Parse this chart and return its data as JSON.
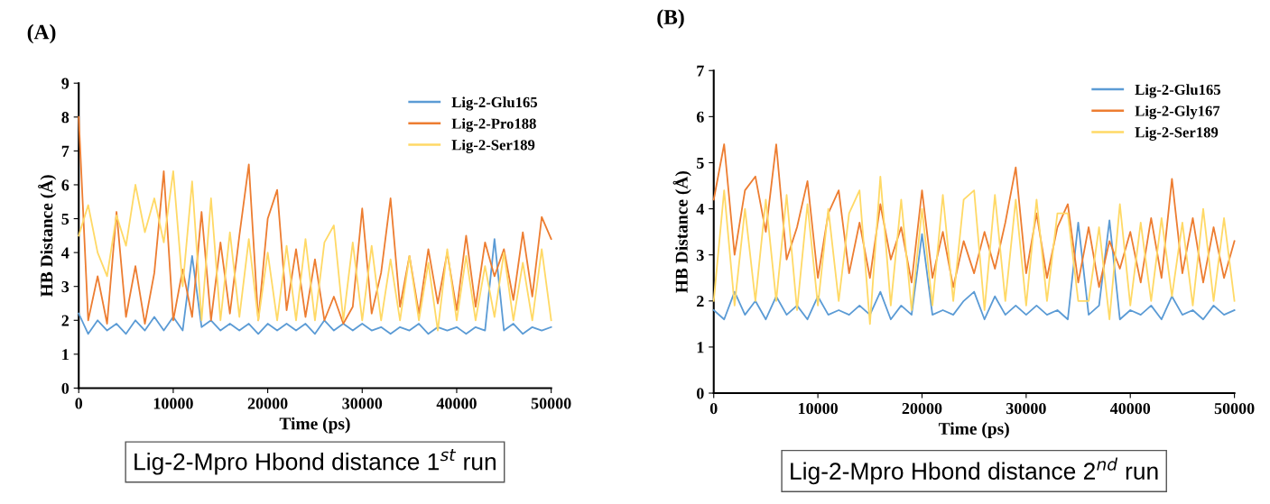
{
  "chart_data": [
    {
      "type": "line",
      "title": "(A)",
      "xlabel": "Time (ps)",
      "ylabel": "HB Distance (Å)",
      "legend": "top right",
      "grid": false,
      "annotations": [
        "Lig-2-Mpro Hbond distance 1$^{st}$ run"
      ],
      "xlim": [
        0,
        50000
      ],
      "xticks": [
        0,
        10000,
        20000,
        30000,
        40000,
        50000
      ],
      "ylim": [
        0,
        9
      ],
      "yticks": [
        0,
        1,
        2,
        3,
        4,
        5,
        6,
        7,
        8,
        9
      ],
      "x": [
        0,
        1000,
        2000,
        3000,
        4000,
        5000,
        6000,
        7000,
        8000,
        9000,
        10000,
        11000,
        12000,
        13000,
        14000,
        15000,
        16000,
        17000,
        18000,
        19000,
        20000,
        21000,
        22000,
        23000,
        24000,
        25000,
        26000,
        27000,
        28000,
        29000,
        30000,
        31000,
        32000,
        33000,
        34000,
        35000,
        36000,
        37000,
        38000,
        39000,
        40000,
        41000,
        42000,
        43000,
        44000,
        45000,
        46000,
        47000,
        48000,
        49000,
        50000
      ],
      "series": [
        {
          "name": "Lig-2-Glu165",
          "color": "#5b9bd5",
          "values": [
            2.2,
            1.6,
            2.0,
            1.7,
            1.9,
            1.6,
            2.0,
            1.7,
            2.1,
            1.7,
            2.1,
            1.7,
            3.9,
            1.8,
            2.0,
            1.7,
            1.9,
            1.7,
            1.9,
            1.6,
            1.9,
            1.7,
            1.9,
            1.7,
            1.9,
            1.6,
            2.0,
            1.7,
            1.9,
            1.7,
            1.9,
            1.7,
            1.8,
            1.6,
            1.8,
            1.7,
            1.9,
            1.6,
            1.8,
            1.7,
            1.8,
            1.6,
            1.8,
            1.7,
            4.4,
            1.7,
            1.9,
            1.6,
            1.8,
            1.7,
            1.8
          ]
        },
        {
          "name": "Lig-2-Pro188",
          "color": "#ed7d31",
          "values": [
            8.0,
            2.0,
            3.3,
            1.9,
            5.2,
            2.1,
            3.6,
            1.9,
            3.4,
            6.4,
            2.0,
            3.5,
            2.1,
            5.2,
            2.0,
            4.3,
            2.2,
            4.5,
            6.6,
            2.0,
            5.0,
            5.85,
            2.3,
            4.1,
            2.1,
            3.8,
            2.0,
            2.7,
            1.9,
            2.4,
            5.3,
            2.2,
            3.4,
            5.6,
            2.4,
            3.9,
            2.2,
            4.1,
            2.5,
            4.0,
            2.3,
            4.5,
            2.4,
            4.3,
            3.3,
            4.1,
            2.6,
            4.6,
            2.7,
            5.05,
            4.4
          ]
        },
        {
          "name": "Lig-2-Ser189",
          "color": "#ffd966",
          "values": [
            4.5,
            5.4,
            4.0,
            3.3,
            5.1,
            4.2,
            6.0,
            4.6,
            5.6,
            4.3,
            6.4,
            3.0,
            6.1,
            2.0,
            5.6,
            2.0,
            4.6,
            2.1,
            4.4,
            2.0,
            4.0,
            2.0,
            4.2,
            2.0,
            4.4,
            2.0,
            4.3,
            4.8,
            2.0,
            4.3,
            2.0,
            4.2,
            2.0,
            3.8,
            2.0,
            3.9,
            2.0,
            3.7,
            1.7,
            4.1,
            2.0,
            3.9,
            2.0,
            3.6,
            2.1,
            4.0,
            2.0,
            3.7,
            2.0,
            4.1,
            2.0
          ]
        }
      ]
    },
    {
      "type": "line",
      "title": "(B)",
      "xlabel": "Time (ps)",
      "ylabel": "HB Distance (Å)",
      "legend": "top right",
      "grid": false,
      "annotations": [
        "Lig-2-Mpro Hbond distance 2$^{nd}$ run"
      ],
      "xlim": [
        0,
        50000
      ],
      "xticks": [
        0,
        10000,
        20000,
        30000,
        40000,
        50000
      ],
      "ylim": [
        0,
        7
      ],
      "yticks": [
        0,
        1,
        2,
        3,
        4,
        5,
        6,
        7
      ],
      "x": [
        0,
        1000,
        2000,
        3000,
        4000,
        5000,
        6000,
        7000,
        8000,
        9000,
        10000,
        11000,
        12000,
        13000,
        14000,
        15000,
        16000,
        17000,
        18000,
        19000,
        20000,
        21000,
        22000,
        23000,
        24000,
        25000,
        26000,
        27000,
        28000,
        29000,
        30000,
        31000,
        32000,
        33000,
        34000,
        35000,
        36000,
        37000,
        38000,
        39000,
        40000,
        41000,
        42000,
        43000,
        44000,
        45000,
        46000,
        47000,
        48000,
        49000,
        50000
      ],
      "series": [
        {
          "name": "Lig-2-Glu165",
          "color": "#5b9bd5",
          "values": [
            1.8,
            1.6,
            2.2,
            1.7,
            2.0,
            1.6,
            2.1,
            1.7,
            1.9,
            1.6,
            2.1,
            1.7,
            1.8,
            1.7,
            1.9,
            1.7,
            2.2,
            1.6,
            1.9,
            1.7,
            3.45,
            1.7,
            1.8,
            1.7,
            2.0,
            2.2,
            1.6,
            2.1,
            1.7,
            1.9,
            1.7,
            1.9,
            1.7,
            1.8,
            1.6,
            3.7,
            1.7,
            1.9,
            3.75,
            1.6,
            1.8,
            1.7,
            1.9,
            1.6,
            2.1,
            1.7,
            1.8,
            1.6,
            1.9,
            1.7,
            1.8
          ]
        },
        {
          "name": "Lig-2-Gly167",
          "color": "#ed7d31",
          "values": [
            4.2,
            5.4,
            3.0,
            4.4,
            4.7,
            3.5,
            5.4,
            2.9,
            3.6,
            4.6,
            2.5,
            3.9,
            4.4,
            2.6,
            3.7,
            2.5,
            4.1,
            2.9,
            3.6,
            2.4,
            4.4,
            2.5,
            3.5,
            2.3,
            3.3,
            2.6,
            3.5,
            2.7,
            3.7,
            4.9,
            2.6,
            3.9,
            2.5,
            3.6,
            4.1,
            2.4,
            3.6,
            2.3,
            3.3,
            2.7,
            3.5,
            2.4,
            3.8,
            2.5,
            4.65,
            2.6,
            3.8,
            2.4,
            3.6,
            2.5,
            3.3
          ]
        },
        {
          "name": "Lig-2-Ser189",
          "color": "#ffd966",
          "values": [
            2.0,
            4.4,
            1.9,
            4.0,
            2.0,
            4.2,
            2.0,
            4.3,
            1.8,
            4.1,
            1.9,
            4.0,
            2.0,
            3.9,
            4.4,
            1.5,
            4.7,
            1.9,
            4.2,
            1.8,
            4.0,
            1.9,
            4.3,
            2.0,
            4.2,
            4.4,
            1.8,
            4.3,
            2.0,
            4.2,
            1.9,
            4.2,
            2.0,
            3.9,
            3.9,
            2.0,
            2.0,
            3.6,
            1.6,
            4.1,
            1.9,
            3.7,
            2.0,
            3.8,
            2.1,
            3.7,
            1.9,
            4.0,
            2.0,
            3.8,
            2.0
          ]
        }
      ]
    }
  ]
}
